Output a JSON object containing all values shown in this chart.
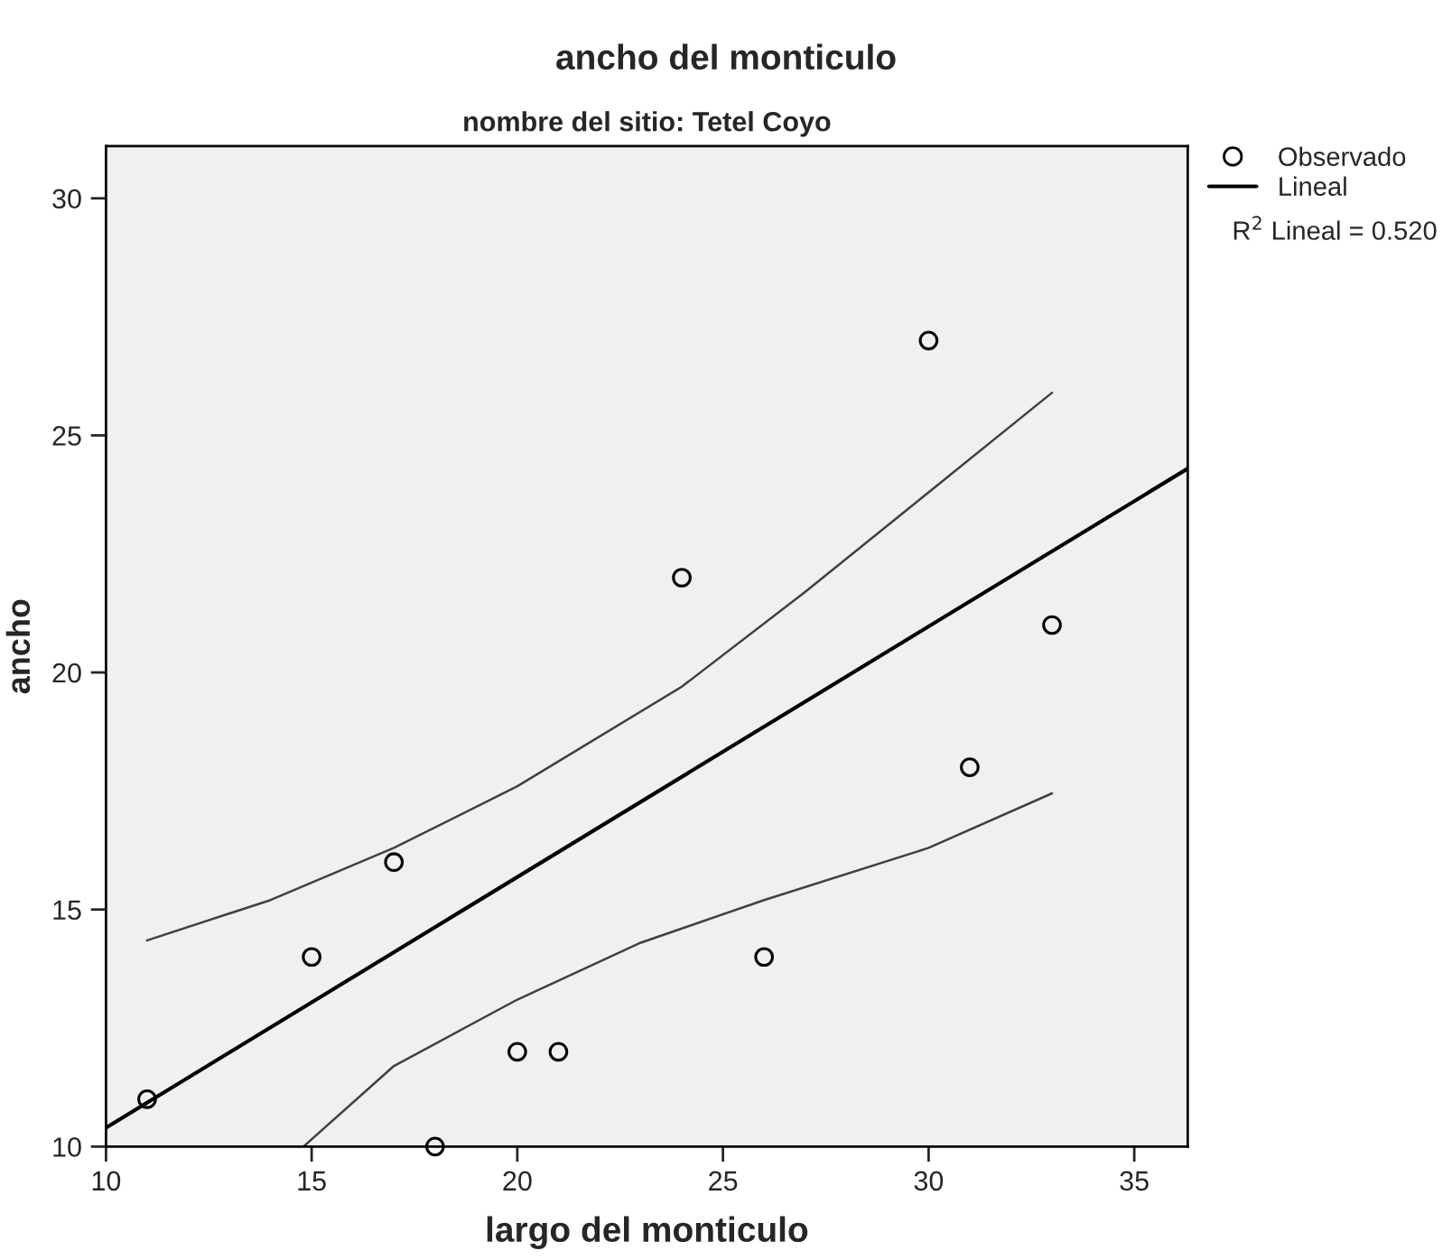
{
  "chart_data": {
    "type": "scatter",
    "title": "ancho del monticulo",
    "subtitle": "nombre del sitio: Tetel Coyo",
    "xlabel": "largo del monticulo",
    "ylabel": "ancho",
    "annotations": [
      "R$^{2}$ Lineal = 0.520"
    ],
    "series": [
      {
        "name": "Observado",
        "color": "#000000",
        "marker": "circle",
        "x": [
          11,
          15,
          17,
          18,
          20,
          21,
          24,
          26,
          30,
          31,
          33
        ],
        "values": [
          11,
          14,
          16,
          10,
          12,
          12,
          22,
          14,
          27,
          18,
          21
        ]
      },
      {
        "name": "Lineal",
        "type": "line",
        "color": "#000000",
        "marker": "none",
        "x": [
          10,
          36.3
        ],
        "values": [
          10.4,
          24.3
        ]
      },
      {
        "type": "line",
        "color": "#404040",
        "marker": "none",
        "x": [
          11,
          14,
          17,
          20,
          24,
          27,
          30,
          33
        ],
        "values": [
          14.35,
          15.2,
          16.3,
          17.6,
          19.7,
          21.7,
          23.8,
          25.9
        ]
      },
      {
        "type": "line",
        "color": "#404040",
        "marker": "none",
        "x": [
          14.8,
          17,
          20,
          23,
          26,
          30,
          33
        ],
        "values": [
          10,
          11.7,
          13.1,
          14.3,
          15.2,
          16.3,
          17.45
        ]
      }
    ],
    "xlim": [
      10,
      36.3
    ],
    "ylim": [
      10,
      31.1
    ],
    "xticks": [
      10,
      15,
      20,
      25,
      30,
      35
    ],
    "yticks": [
      10,
      15,
      20,
      25,
      30
    ],
    "grid": false,
    "legend": "top right"
  }
}
